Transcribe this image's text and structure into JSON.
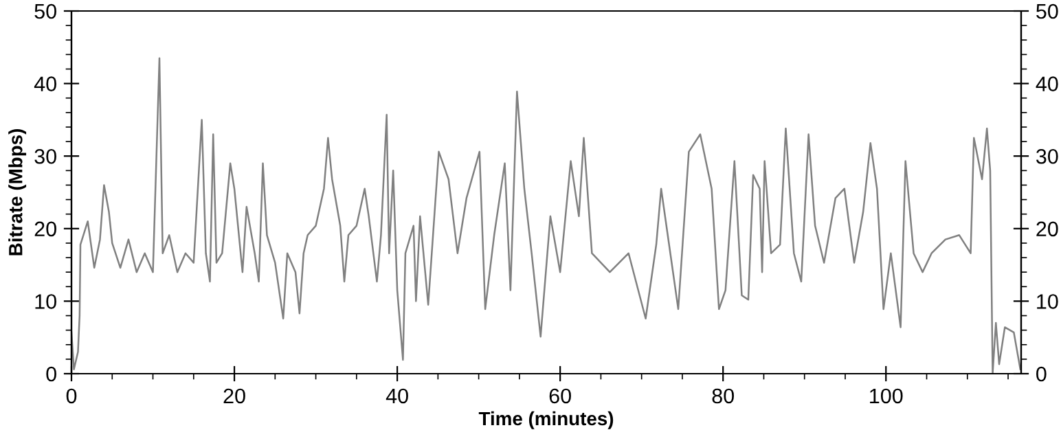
{
  "chart_data": {
    "type": "line",
    "xlabel": "Time (minutes)",
    "ylabel": "Bitrate (Mbps)",
    "xlim": [
      0,
      116.6
    ],
    "ylim": [
      0,
      50
    ],
    "y2lim": [
      0,
      50
    ],
    "xticks": [
      0,
      {
        "value": 5,
        "label": null
      },
      {
        "value": 10,
        "label": null
      },
      {
        "value": 15,
        "label": null
      },
      20,
      {
        "value": 25,
        "label": null
      },
      {
        "value": 30,
        "label": null
      },
      {
        "value": 35,
        "label": null
      },
      40,
      {
        "value": 45,
        "label": null
      },
      {
        "value": 50,
        "label": null
      },
      {
        "value": 55,
        "label": null
      },
      60,
      {
        "value": 65,
        "label": null
      },
      {
        "value": 70,
        "label": null
      },
      {
        "value": 75,
        "label": null
      },
      80,
      {
        "value": 85,
        "label": null
      },
      {
        "value": 90,
        "label": null
      },
      {
        "value": 95,
        "label": null
      },
      100,
      {
        "value": 105,
        "label": null
      },
      {
        "value": 110,
        "label": null
      },
      {
        "value": 115,
        "label": null
      }
    ],
    "yticks": [
      0,
      {
        "value": 2,
        "label": null
      },
      {
        "value": 4,
        "label": null
      },
      {
        "value": 6,
        "label": null
      },
      {
        "value": 8,
        "label": null
      },
      10,
      {
        "value": 12,
        "label": null
      },
      {
        "value": 14,
        "label": null
      },
      {
        "value": 16,
        "label": null
      },
      {
        "value": 18,
        "label": null
      },
      20,
      {
        "value": 22,
        "label": null
      },
      {
        "value": 24,
        "label": null
      },
      {
        "value": 26,
        "label": null
      },
      {
        "value": 28,
        "label": null
      },
      30,
      {
        "value": 32,
        "label": null
      },
      {
        "value": 34,
        "label": null
      },
      {
        "value": 36,
        "label": null
      },
      {
        "value": 38,
        "label": null
      },
      40,
      {
        "value": 42,
        "label": null
      },
      {
        "value": 44,
        "label": null
      },
      {
        "value": 46,
        "label": null
      },
      {
        "value": 48,
        "label": null
      },
      50
    ],
    "y2ticks": [
      0,
      {
        "value": 2,
        "label": null
      },
      {
        "value": 4,
        "label": null
      },
      {
        "value": 6,
        "label": null
      },
      {
        "value": 8,
        "label": null
      },
      10,
      {
        "value": 12,
        "label": null
      },
      {
        "value": 14,
        "label": null
      },
      {
        "value": 16,
        "label": null
      },
      {
        "value": 18,
        "label": null
      },
      20,
      {
        "value": 22,
        "label": null
      },
      {
        "value": 24,
        "label": null
      },
      {
        "value": 26,
        "label": null
      },
      {
        "value": 28,
        "label": null
      },
      30,
      {
        "value": 32,
        "label": null
      },
      {
        "value": 34,
        "label": null
      },
      {
        "value": 36,
        "label": null
      },
      {
        "value": 38,
        "label": null
      },
      40,
      {
        "value": 42,
        "label": null
      },
      {
        "value": 44,
        "label": null
      },
      {
        "value": 46,
        "label": null
      },
      {
        "value": 48,
        "label": null
      },
      50
    ],
    "grid": false,
    "marker": "none",
    "line_style": "solid",
    "series": [
      {
        "color": "#808080",
        "x": [
          0,
          0.3,
          0.8,
          1,
          1.1,
          2,
          2.8,
          3.5,
          4,
          4.6,
          5,
          6,
          7,
          8,
          9,
          10,
          10.8,
          11.2,
          12,
          13,
          14,
          15,
          16,
          16.5,
          17,
          17.4,
          17.8,
          18.5,
          19.5,
          20,
          21,
          21.5,
          22.5,
          23,
          23.5,
          24,
          25,
          26,
          26.5,
          27.5,
          28,
          28.5,
          29,
          30,
          31,
          31.5,
          32,
          33,
          33.5,
          34,
          35,
          36,
          36.5,
          37.5,
          38,
          38.7,
          39,
          39.5,
          40,
          40.7,
          41,
          42,
          42.3,
          42.8,
          43.8,
          45.1,
          46.3,
          47.4,
          48.5,
          50.1,
          50.8,
          51.9,
          53.2,
          53.9,
          54.7,
          55.6,
          56.5,
          57.6,
          58.8,
          60,
          61.3,
          62.3,
          62.9,
          63.9,
          66.1,
          68.4,
          70.5,
          71.8,
          72.4,
          74.5,
          75.8,
          77.2,
          78.6,
          79.5,
          80.3,
          81.4,
          82.3,
          83.1,
          83.7,
          84.5,
          84.8,
          85.1,
          85.9,
          87,
          87.7,
          88.7,
          89.6,
          90.5,
          91.3,
          92.4,
          93.8,
          94.9,
          96.1,
          97.2,
          98.1,
          98.9,
          99.7,
          100.6,
          101.8,
          102.4,
          103.4,
          104.5,
          105.6,
          107.3,
          109,
          110.4,
          110.8,
          111.8,
          112.4,
          112.8,
          113.1,
          113.5,
          113.9,
          114.6,
          115.7,
          116.5
        ],
        "values": [
          5.7,
          0.6,
          3,
          8,
          17.8,
          21,
          14.6,
          18.5,
          26,
          22.3,
          18,
          14.6,
          18.5,
          14,
          16.6,
          14,
          43.5,
          16.6,
          19.1,
          14,
          16.6,
          15.3,
          35,
          16.6,
          12.7,
          33,
          15.3,
          16.6,
          29,
          25.5,
          14,
          23,
          16.6,
          12.7,
          29,
          19.1,
          15.3,
          7.6,
          16.6,
          14,
          8.3,
          16.6,
          19.1,
          20.4,
          25.5,
          32.5,
          26.8,
          20.4,
          12.7,
          19.1,
          20.4,
          25.5,
          21.7,
          12.7,
          19.1,
          35.7,
          16.6,
          28,
          11.5,
          1.9,
          16.6,
          20.4,
          10,
          21.7,
          9.5,
          30.6,
          26.8,
          16.6,
          24.2,
          30.6,
          8.9,
          19.1,
          29,
          11.5,
          38.9,
          25.5,
          16.6,
          5.1,
          21.7,
          14,
          29.3,
          21.7,
          32.5,
          16.6,
          14,
          16.6,
          7.6,
          17.8,
          25.5,
          8.9,
          30.6,
          33,
          25.5,
          8.9,
          11.5,
          29.3,
          10.8,
          10.2,
          27.4,
          25.5,
          14,
          29.3,
          16.6,
          17.8,
          33.8,
          16.6,
          12.7,
          33,
          20.4,
          15.3,
          24.2,
          25.5,
          15.3,
          22.3,
          31.8,
          25.5,
          8.9,
          16.6,
          6.4,
          29.3,
          16.6,
          14,
          16.6,
          18.5,
          19.1,
          16.6,
          32.5,
          26.8,
          33.8,
          28,
          0,
          7,
          1.3,
          6.4,
          5.7,
          0.6
        ]
      }
    ]
  }
}
